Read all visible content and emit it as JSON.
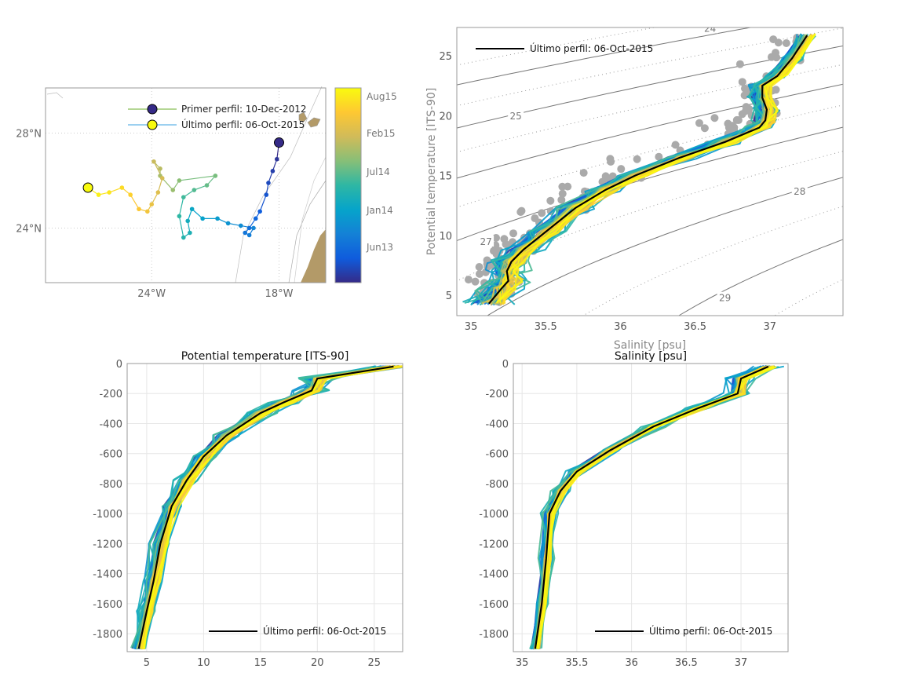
{
  "chart_data": [
    {
      "type": "map",
      "xticks": [
        "24°W",
        "18°W"
      ],
      "yticks": [
        "28°N",
        "24°N"
      ],
      "xlim": [
        -29,
        -15.8
      ],
      "ylim": [
        21.7,
        29.9
      ],
      "legend": {
        "placement": "top-right",
        "entries": [
          "Primer perfil: 10-Dec-2012",
          "Último perfil: 06-Oct-2015"
        ],
        "first_color": "#352a87",
        "last_color": "#f9fb0e"
      },
      "land_color": "#b39a68",
      "track": [
        [
          -18.0,
          27.6
        ],
        [
          -18.1,
          26.9
        ],
        [
          -18.3,
          26.4
        ],
        [
          -18.5,
          25.9
        ],
        [
          -18.6,
          25.4
        ],
        [
          -18.9,
          24.7
        ],
        [
          -19.1,
          24.4
        ],
        [
          -19.4,
          24.0
        ],
        [
          -19.6,
          23.8
        ],
        [
          -19.4,
          23.7
        ],
        [
          -19.2,
          24.0
        ],
        [
          -19.8,
          24.1
        ],
        [
          -20.4,
          24.2
        ],
        [
          -20.9,
          24.4
        ],
        [
          -21.6,
          24.4
        ],
        [
          -22.1,
          24.8
        ],
        [
          -22.3,
          24.3
        ],
        [
          -22.2,
          23.8
        ],
        [
          -22.5,
          23.6
        ],
        [
          -22.7,
          24.5
        ],
        [
          -22.5,
          25.3
        ],
        [
          -22.0,
          25.6
        ],
        [
          -21.4,
          25.8
        ],
        [
          -21.0,
          26.2
        ],
        [
          -22.7,
          26.0
        ],
        [
          -23.0,
          25.6
        ],
        [
          -23.6,
          26.2
        ],
        [
          -23.6,
          26.5
        ],
        [
          -23.9,
          26.8
        ],
        [
          -23.5,
          26.1
        ],
        [
          -23.7,
          25.5
        ],
        [
          -24.0,
          25.0
        ],
        [
          -24.2,
          24.7
        ],
        [
          -24.6,
          24.8
        ],
        [
          -25.0,
          25.4
        ],
        [
          -25.4,
          25.7
        ],
        [
          -26.0,
          25.5
        ],
        [
          -26.5,
          25.4
        ],
        [
          -27.0,
          25.7
        ]
      ],
      "colorbar": {
        "ticks": [
          "Aug15",
          "Feb15",
          "Jul14",
          "Jan14",
          "Jun13"
        ],
        "colormap": [
          "#352a87",
          "#0f5cdd",
          "#1481d6",
          "#06a4ca",
          "#2eb7a4",
          "#87bf77",
          "#d1bb59",
          "#fec832",
          "#f9fb0e"
        ]
      }
    },
    {
      "type": "line",
      "xlabel": "Salinity [psu]",
      "ylabel": "Potential temperature [ITS-90]",
      "xlim": [
        34.905,
        37.49
      ],
      "ylim": [
        3.3,
        27.36
      ],
      "xticks": [
        35,
        35.5,
        36,
        36.5,
        37
      ],
      "yticks": [
        5,
        10,
        15,
        20,
        25
      ],
      "isopycnal_labels": [
        "24",
        "25",
        "27",
        "28",
        "29"
      ],
      "legend": {
        "placement": "top-left",
        "entries": [
          "Último perfil: 06-Oct-2015"
        ]
      },
      "last_profile": {
        "x": [
          35.12,
          35.2,
          35.25,
          35.24,
          35.27,
          35.35,
          35.5,
          35.7,
          35.9,
          36.1,
          36.4,
          36.7,
          36.93,
          36.97,
          36.98,
          36.95,
          36.95,
          37.05,
          37.15,
          37.25
        ],
        "y": [
          4.3,
          5.5,
          6.2,
          7.0,
          7.8,
          8.8,
          10.3,
          12.3,
          13.8,
          15.0,
          16.5,
          17.8,
          19.0,
          19.6,
          20.5,
          21.5,
          22.5,
          23.3,
          24.8,
          26.7
        ]
      }
    },
    {
      "type": "line",
      "title": "Potential temperature [ITS-90]",
      "xlim": [
        3.28,
        27.5
      ],
      "ylim": [
        -1920,
        0
      ],
      "xticks": [
        5,
        10,
        15,
        20,
        25
      ],
      "yticks": [
        0,
        -200,
        -400,
        -600,
        -800,
        -1000,
        -1200,
        -1400,
        -1600,
        -1800
      ],
      "legend": {
        "placement": "bottom-right",
        "entries": [
          "Último perfil: 06-Oct-2015"
        ]
      },
      "last_profile": {
        "x": [
          26.7,
          20,
          19.5,
          17,
          15,
          12,
          10,
          8.5,
          7.2,
          6.2,
          5.6,
          5,
          4.3
        ],
        "y": [
          -20,
          -100,
          -180,
          -260,
          -330,
          -480,
          -620,
          -780,
          -950,
          -1200,
          -1450,
          -1650,
          -1900
        ]
      }
    },
    {
      "type": "line",
      "title": "Salinity [psu]",
      "xlim": [
        34.92,
        37.43
      ],
      "ylim": [
        -1920,
        0
      ],
      "xticks": [
        35,
        35.5,
        36,
        36.5,
        37
      ],
      "yticks": [
        0,
        -200,
        -400,
        -600,
        -800,
        -1000,
        -1200,
        -1400,
        -1600,
        -1800
      ],
      "legend": {
        "placement": "bottom-right",
        "entries": [
          "Último perfil: 06-Oct-2015"
        ]
      },
      "last_profile": {
        "x": [
          37.25,
          37.0,
          36.97,
          36.6,
          36.2,
          35.8,
          35.5,
          35.35,
          35.25,
          35.22,
          35.18,
          35.12
        ],
        "y": [
          -20,
          -100,
          -200,
          -300,
          -420,
          -580,
          -720,
          -850,
          -1000,
          -1300,
          -1600,
          -1900
        ]
      }
    }
  ]
}
